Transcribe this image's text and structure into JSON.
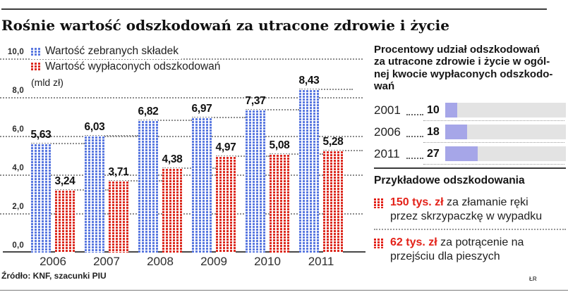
{
  "header": {
    "title": "Rośnie wartość odszkodowań za utracone zdrowie i życie"
  },
  "chart_data": [
    {
      "type": "bar",
      "title": "Rośnie wartość odszkodowań za utracone zdrowie i życie",
      "unit_label": "(mld zł)",
      "categories": [
        "2006",
        "2007",
        "2008",
        "2009",
        "2010",
        "2011"
      ],
      "series": [
        {
          "name": "Wartość zebranych składek",
          "color": "#5b79e0",
          "values": [
            5.63,
            6.03,
            6.82,
            6.97,
            7.37,
            8.43
          ]
        },
        {
          "name": "Wartość wypłaconych odszkodowań",
          "color": "#dc2b20",
          "values": [
            3.24,
            3.71,
            4.38,
            4.97,
            5.08,
            5.28
          ]
        }
      ],
      "ylim": [
        0,
        10
      ],
      "ytick_values": [
        10,
        8,
        6,
        4,
        2,
        0
      ],
      "grid": "dotted-horizontal",
      "legend_position": "top-left"
    },
    {
      "type": "bar",
      "orientation": "horizontal",
      "title": "Procentowy udział odszkodowań\nza utracone zdrowie i życie w ogól-\nnej kwocie wypłaconych odszkodo-\nwań",
      "categories": [
        "2001",
        "2006",
        "2011"
      ],
      "values": [
        10,
        18,
        27
      ],
      "xlim": [
        0,
        100
      ],
      "unit": "%",
      "fill_color": "#a6a6e8",
      "track_color": "#e3e3e3"
    }
  ],
  "examples": {
    "heading": "Przykładowe odszkodowania",
    "accent_color": "#e32219",
    "items": [
      {
        "amount": "150 tys. zł",
        "text": "za złamanie ręki przez skrzypaczkę w wypadku"
      },
      {
        "amount": "62 tys. zł",
        "text": "za potrącenie na przejściu dla pieszych"
      }
    ]
  },
  "footer": {
    "source": "Źródło: KNF, szacunki PIU",
    "credit": "ŁR"
  }
}
